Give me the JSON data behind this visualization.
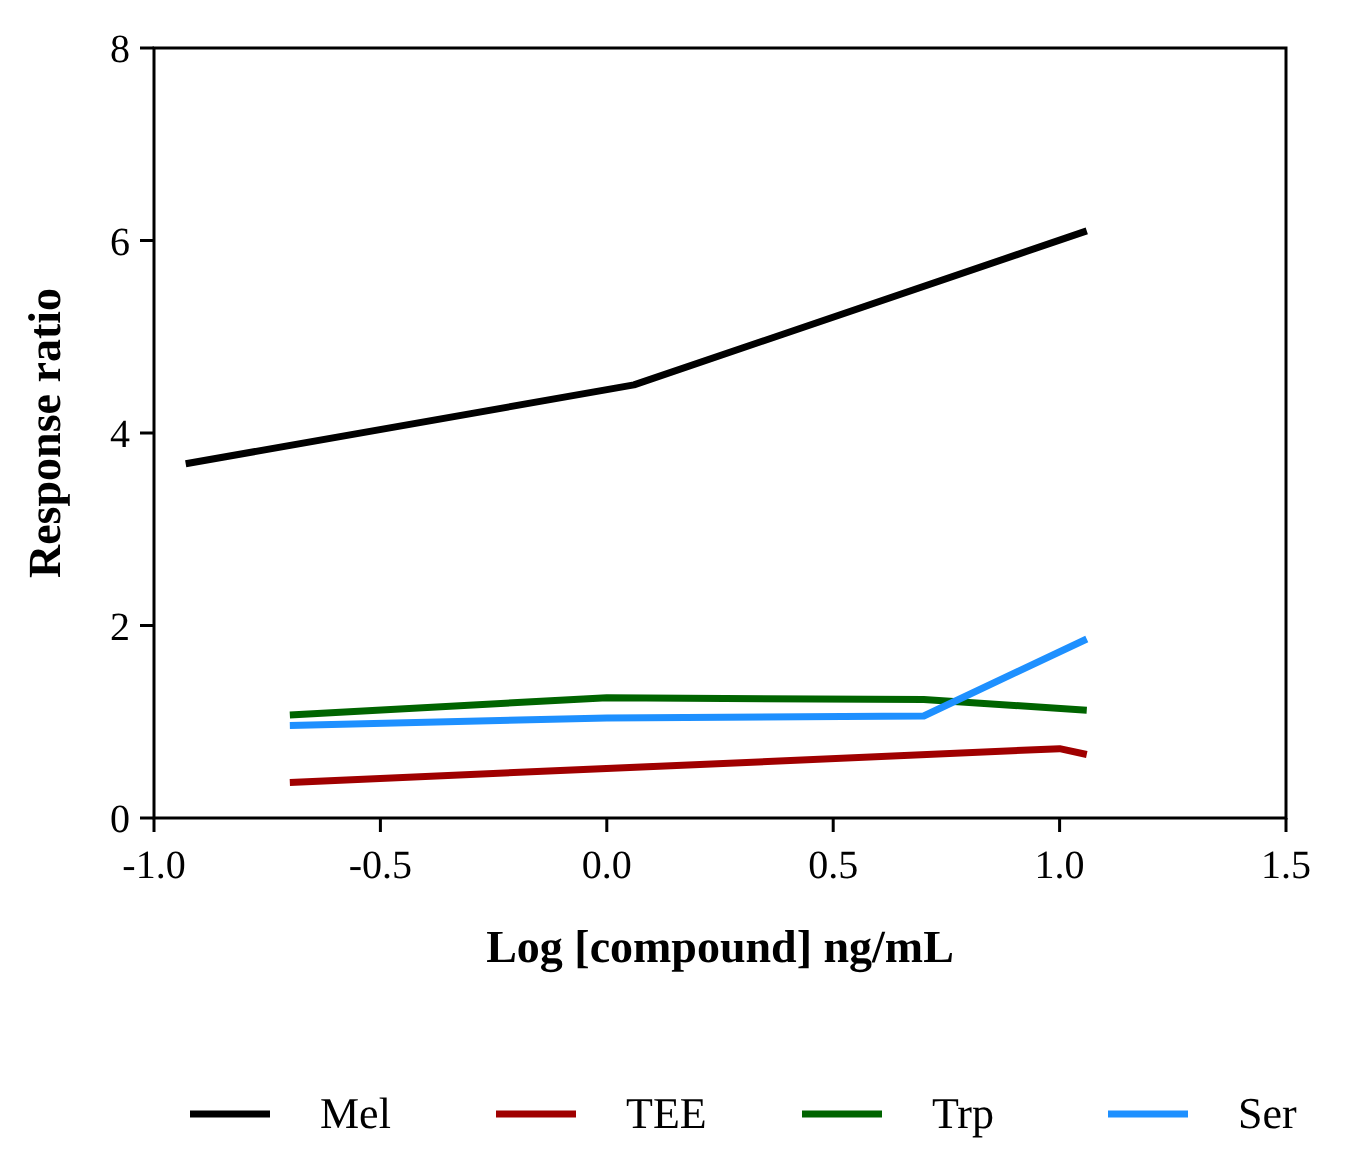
{
  "chart_data": {
    "type": "line",
    "xlabel": "Log [compound] ng/mL",
    "ylabel": "Response ratio",
    "xlim": [
      -1,
      1.5
    ],
    "xticks": [
      {
        "value": -1,
        "label": "-1.0"
      },
      {
        "value": -0.5,
        "label": "-0.5"
      },
      {
        "value": 0,
        "label": "0.0"
      },
      {
        "value": 0.5,
        "label": "0.5"
      },
      {
        "value": 1,
        "label": "1.0"
      },
      {
        "value": 1.5,
        "label": "1.5"
      }
    ],
    "ylim": [
      0,
      8
    ],
    "yticks": [
      0,
      2,
      4,
      6,
      8
    ],
    "legend": "bottom",
    "marker": "none",
    "line_style": "solid",
    "grid": false,
    "series": [
      {
        "name": "Mel",
        "color": "#000000",
        "x": [
          -0.93,
          0.06,
          1.06
        ],
        "values": [
          3.68,
          4.5,
          6.1
        ]
      },
      {
        "name": "TEE",
        "color": "#a00000",
        "x": [
          -0.7,
          1.0,
          1.06
        ],
        "values": [
          0.37,
          0.72,
          0.66
        ]
      },
      {
        "name": "Trp",
        "color": "#006400",
        "x": [
          -0.7,
          0.0,
          0.7,
          1.06
        ],
        "values": [
          1.07,
          1.25,
          1.23,
          1.12
        ]
      },
      {
        "name": "Ser",
        "color": "#1e90ff",
        "x": [
          -0.7,
          0.0,
          0.7,
          1.06
        ],
        "values": [
          0.96,
          1.04,
          1.06,
          1.86
        ]
      }
    ]
  }
}
